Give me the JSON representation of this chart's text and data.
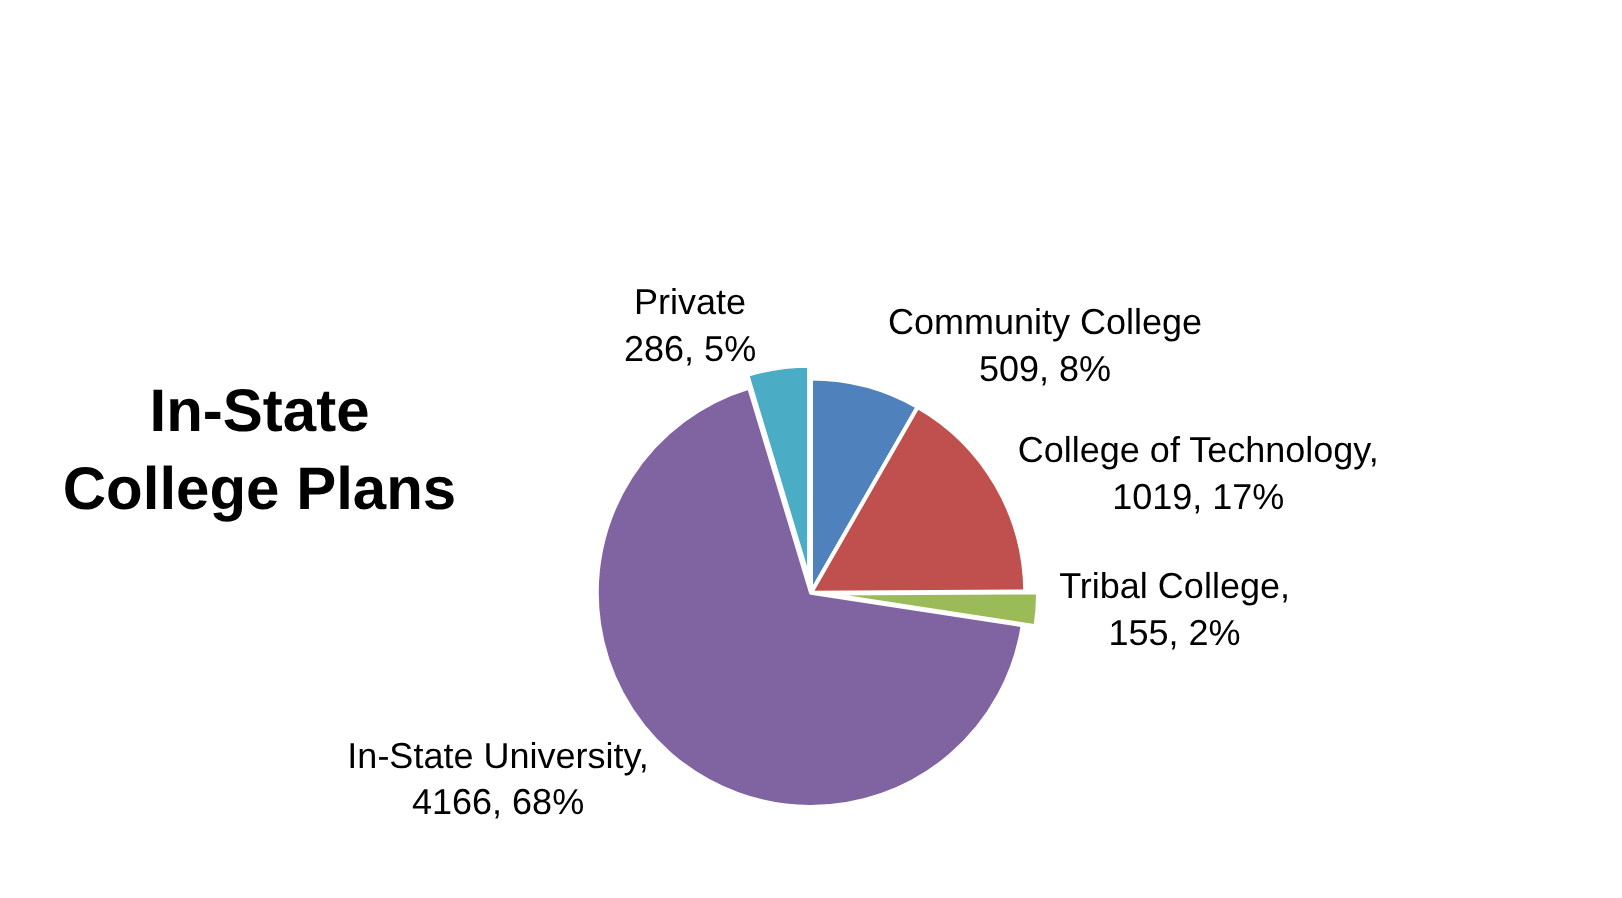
{
  "chart_data": {
    "type": "pie",
    "title": "In-State College Plans",
    "categories": [
      "Community College",
      "College of Technology",
      "Tribal College",
      "In-State University",
      "Private"
    ],
    "values": [
      509,
      1019,
      155,
      4166,
      286
    ],
    "value_labels": [
      "509, 8%",
      ", 1019, 17%",
      ", 155, 2%",
      ", 4166, 68%",
      "286, 5%"
    ],
    "colors": [
      "#4f81bd",
      "#c0504d",
      "#9bbb59",
      "#8064a2",
      "#4bacc6"
    ],
    "legend": false
  }
}
